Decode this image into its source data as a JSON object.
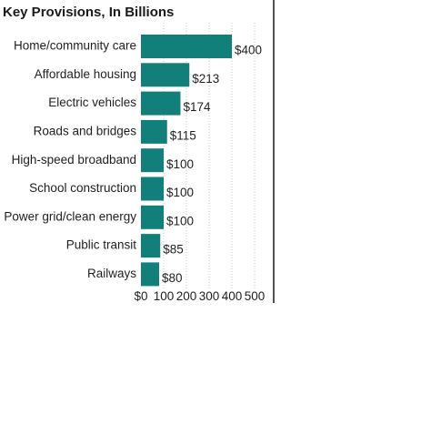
{
  "chart_data": {
    "type": "bar",
    "orientation": "horizontal",
    "title": "Key Provisions, In Billions",
    "categories": [
      "Home/community care",
      "Affordable housing",
      "Electric vehicles",
      "Roads and bridges",
      "High-speed broadband",
      "School construction",
      "Power grid/clean energy",
      "Public transit",
      "Railways"
    ],
    "values": [
      400,
      213,
      174,
      115,
      100,
      100,
      100,
      85,
      80
    ],
    "value_labels": [
      "$400",
      "$213",
      "$174",
      "$115",
      "$100",
      "$100",
      "$100",
      "$85",
      "$80"
    ],
    "xlim": [
      0,
      500
    ],
    "x_ticks": [
      0,
      100,
      200,
      300,
      400,
      500
    ],
    "x_tick_labels": [
      "$0",
      "100",
      "200",
      "300",
      "400",
      "500"
    ],
    "grid": true,
    "colors": {
      "bar": "#127f7b",
      "grid": "#c8c8c8",
      "frame": "#1a1a1a"
    }
  }
}
